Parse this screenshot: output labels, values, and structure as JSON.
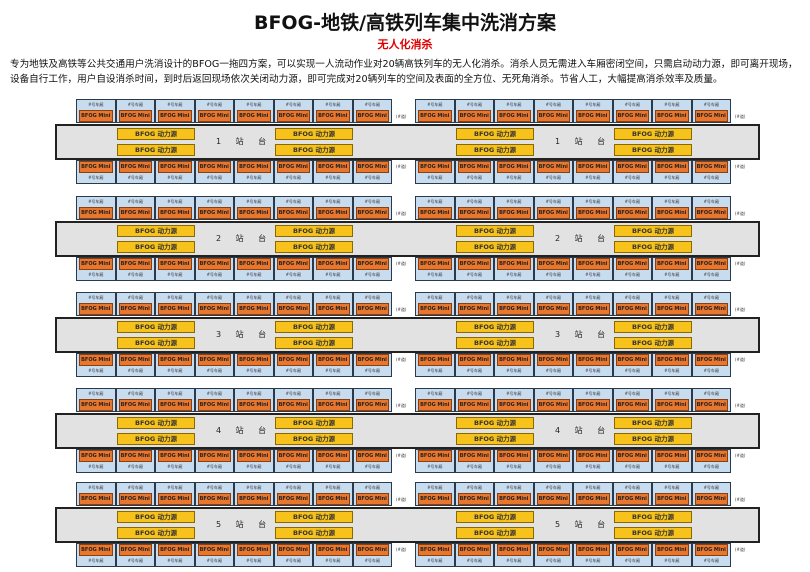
{
  "title": "BFOG-地铁/高铁列车集中洗消方案",
  "subtitle": "无人化消杀",
  "description": "专为地铁及高铁等公共交通用户洗消设计的BFOG一拖四方案，可以实现一人流动作业对20辆高铁列车的无人化消杀。消杀人员无需进入车厢密闭空间，只需启动动力源，即可离开现场，设备自行工作，用户自设消杀时间，到时后返回现场依次关闭动力源，即可完成对20辆列车的空间及表面的全方位、无死角消杀。节省人工，大幅提高消杀效率及质量。",
  "car_label": "#号车厢",
  "mini_label": "BFOG Mini",
  "power_label": "BFOG 动力源",
  "track_label": "(#道)",
  "platforms": [
    "1 站 台",
    "2 站 台",
    "3 站 台",
    "4 站 台",
    "5 站 台"
  ],
  "colors": {
    "car": "#c8dcf0",
    "mini": "#e8762d",
    "power": "#f7c21c",
    "platform": "#e2e2e2",
    "subtitle": "#e00000"
  }
}
